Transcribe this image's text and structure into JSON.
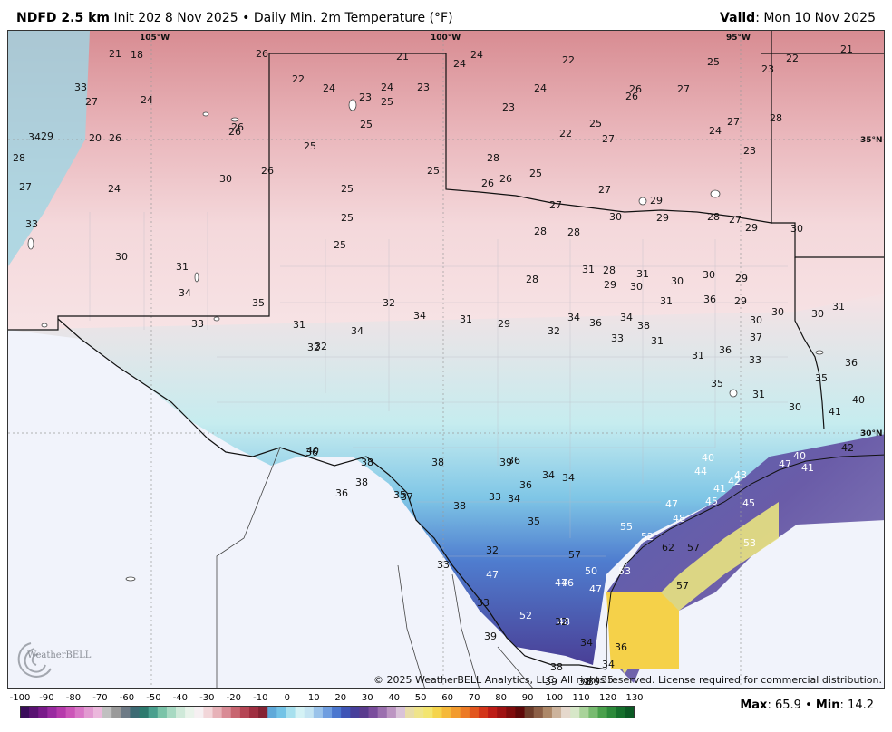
{
  "header": {
    "model": "NDFD 2.5 km",
    "init": "Init 20z 8 Nov 2025",
    "separator": "•",
    "field": "Daily Min. 2m Temperature (°F)",
    "valid_label": "Valid",
    "valid_value": ": Mon 10 Nov 2025"
  },
  "map": {
    "graticule": {
      "lon_labels": [
        "105°W",
        "100°W",
        "95°W"
      ],
      "lat_labels": [
        "35°N",
        "30°N"
      ]
    },
    "temperature_labels": [
      "21",
      "18",
      "26",
      "21",
      "24",
      "24",
      "22",
      "22",
      "23",
      "21",
      "22",
      "23",
      "33",
      "24",
      "24",
      "23",
      "26",
      "25",
      "27",
      "25",
      "24",
      "23",
      "24",
      "29",
      "34",
      "20",
      "26",
      "26",
      "28",
      "25",
      "25",
      "22",
      "27",
      "25",
      "26",
      "26",
      "27",
      "25",
      "23",
      "24",
      "27",
      "28",
      "30",
      "27",
      "24",
      "33",
      "25",
      "25",
      "28",
      "26",
      "25",
      "28",
      "26",
      "26",
      "25",
      "27",
      "28",
      "27",
      "30",
      "29",
      "29",
      "28",
      "27",
      "29",
      "30",
      "28",
      "31",
      "28",
      "31",
      "29",
      "30",
      "30",
      "30",
      "29",
      "31",
      "36",
      "29",
      "30",
      "30",
      "30",
      "31",
      "31",
      "30",
      "34",
      "33",
      "35",
      "31",
      "32",
      "32",
      "34",
      "32",
      "34",
      "31",
      "29",
      "32",
      "34",
      "36",
      "34",
      "38",
      "31",
      "33",
      "31",
      "36",
      "37",
      "33",
      "35",
      "31",
      "30",
      "35",
      "36",
      "40",
      "41",
      "42",
      "41",
      "47",
      "40",
      "40",
      "44",
      "41",
      "42",
      "43",
      "45",
      "45",
      "47",
      "48",
      "52",
      "55",
      "57",
      "47",
      "46",
      "47",
      "50",
      "53",
      "53",
      "57",
      "57",
      "62",
      "48",
      "47",
      "52",
      "39",
      "38",
      "38",
      "39",
      "39",
      "35",
      "36",
      "36",
      "34",
      "34",
      "32",
      "33",
      "33",
      "32",
      "35",
      "34",
      "34",
      "36",
      "36",
      "38",
      "39",
      "40",
      "36",
      "38",
      "37",
      "38",
      "33",
      "34",
      "35",
      "36",
      "38",
      "31",
      "32",
      "31",
      "33",
      "34",
      "37"
    ],
    "copyright": "© 2025 WeatherBELL Analytics, LLC. All rights reserved. License required for commercial distribution.",
    "logo_text": "WeatherBELL"
  },
  "colorbar": {
    "ticks": [
      "-100",
      "-90",
      "-80",
      "-70",
      "-60",
      "-50",
      "-40",
      "-30",
      "-20",
      "-10",
      "0",
      "10",
      "20",
      "30",
      "40",
      "50",
      "60",
      "70",
      "80",
      "90",
      "100",
      "110",
      "120",
      "130"
    ]
  },
  "stats": {
    "max_label": "Max",
    "max_value": ": 65.9",
    "sep": "•",
    "min_label": "Min",
    "min_value": ": 14.2"
  }
}
